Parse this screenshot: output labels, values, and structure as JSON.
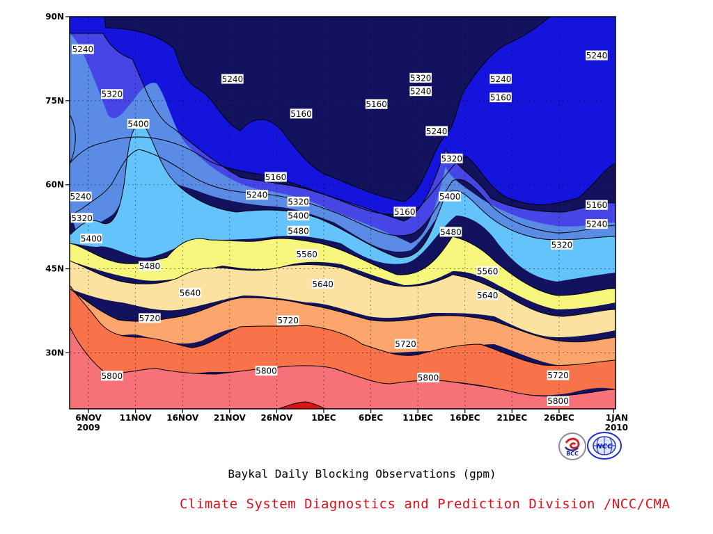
{
  "caption": "Baykal Daily Blocking Observations (gpm)",
  "credit": "Climate System Diagnostics and Prediction Division /NCC/CMA",
  "logos": [
    "BCC",
    "NCC"
  ],
  "chart_data": {
    "type": "contour",
    "title": "",
    "xlabel": "",
    "ylabel": "",
    "x_ticks": [
      "6NOV\n2009",
      "11NOV",
      "16NOV",
      "21NOV",
      "26NOV",
      "1DEC",
      "6DEC",
      "11DEC",
      "16DEC",
      "21DEC",
      "26DEC",
      "1JAN\n2010"
    ],
    "y_ticks": [
      "30N",
      "45N",
      "60N",
      "75N",
      "90N"
    ],
    "x_range": [
      "2009-11-04",
      "2010-01-01"
    ],
    "y_range": [
      "20N",
      "90N"
    ],
    "grid": true,
    "contour_levels": [
      5160,
      5240,
      5320,
      5400,
      5480,
      5560,
      5640,
      5720,
      5800,
      5880
    ],
    "fill_colors": [
      "#13125e",
      "#1414dc",
      "#4646e6",
      "#5a8ce6",
      "#64c3fa",
      "#f6f67c",
      "#fbe2a0",
      "#fca56c",
      "#f8734a",
      "#f77178",
      "#dc1414"
    ],
    "contour_labels": [
      {
        "value": 5240,
        "day": 1.4,
        "lat": 84.2
      },
      {
        "value": 5240,
        "day": 17.3,
        "lat": 78.9
      },
      {
        "value": 5320,
        "day": 4.5,
        "lat": 76.2
      },
      {
        "value": 5400,
        "day": 7.3,
        "lat": 70.9
      },
      {
        "value": 5160,
        "day": 24.6,
        "lat": 72.7
      },
      {
        "value": 5160,
        "day": 32.6,
        "lat": 74.4
      },
      {
        "value": 5320,
        "day": 37.3,
        "lat": 79.1
      },
      {
        "value": 5240,
        "day": 37.3,
        "lat": 76.7
      },
      {
        "value": 5240,
        "day": 45.8,
        "lat": 78.9
      },
      {
        "value": 5160,
        "day": 45.8,
        "lat": 75.6
      },
      {
        "value": 5240,
        "day": 56.0,
        "lat": 83.1
      },
      {
        "value": 5240,
        "day": 39.0,
        "lat": 69.6
      },
      {
        "value": 5320,
        "day": 40.6,
        "lat": 64.7
      },
      {
        "value": 5400,
        "day": 40.4,
        "lat": 57.9
      },
      {
        "value": 5480,
        "day": 40.5,
        "lat": 51.6
      },
      {
        "value": 5160,
        "day": 21.9,
        "lat": 61.4
      },
      {
        "value": 5240,
        "day": 19.9,
        "lat": 58.2
      },
      {
        "value": 5320,
        "day": 24.3,
        "lat": 57.0
      },
      {
        "value": 5400,
        "day": 24.3,
        "lat": 54.5
      },
      {
        "value": 5480,
        "day": 24.3,
        "lat": 51.8
      },
      {
        "value": 5160,
        "day": 35.6,
        "lat": 55.2
      },
      {
        "value": 5240,
        "day": 0.4,
        "lat": 57.9
      },
      {
        "value": 5320,
        "day": 1.3,
        "lat": 54.1
      },
      {
        "value": 5400,
        "day": 2.3,
        "lat": 50.4
      },
      {
        "value": 5480,
        "day": 8.5,
        "lat": 45.5
      },
      {
        "value": 5560,
        "day": 25.2,
        "lat": 47.6
      },
      {
        "value": 5560,
        "day": 44.4,
        "lat": 44.6
      },
      {
        "value": 5640,
        "day": 26.9,
        "lat": 42.3
      },
      {
        "value": 5640,
        "day": 12.8,
        "lat": 40.7
      },
      {
        "value": 5640,
        "day": 44.4,
        "lat": 40.3
      },
      {
        "value": 5720,
        "day": 8.5,
        "lat": 36.2
      },
      {
        "value": 5720,
        "day": 23.2,
        "lat": 35.8
      },
      {
        "value": 5720,
        "day": 35.7,
        "lat": 31.6
      },
      {
        "value": 5720,
        "day": 51.9,
        "lat": 26.0
      },
      {
        "value": 5800,
        "day": 4.5,
        "lat": 25.9
      },
      {
        "value": 5800,
        "day": 20.9,
        "lat": 26.8
      },
      {
        "value": 5800,
        "day": 38.1,
        "lat": 25.6
      },
      {
        "value": 5800,
        "day": 51.9,
        "lat": 21.4
      },
      {
        "value": 5160,
        "day": 56.0,
        "lat": 56.4
      },
      {
        "value": 5240,
        "day": 56.0,
        "lat": 53.0
      },
      {
        "value": 5320,
        "day": 52.3,
        "lat": 49.3
      }
    ]
  }
}
